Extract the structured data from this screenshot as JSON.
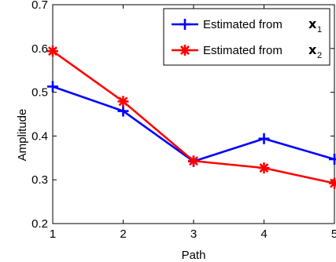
{
  "chart_data": {
    "type": "line",
    "xlabel": "Path",
    "ylabel": "Amplitude",
    "xlim": [
      1,
      5
    ],
    "ylim": [
      0.2,
      0.7
    ],
    "x": [
      1,
      2,
      3,
      4,
      5
    ],
    "x_ticks": [
      "1",
      "2",
      "3",
      "4",
      "5"
    ],
    "y_ticks": [
      "0.2",
      "0.3",
      "0.4",
      "0.5",
      "0.6",
      "0.7"
    ],
    "grid": false,
    "legend_position": "top-right",
    "series": [
      {
        "name": "Estimated from",
        "var": "x",
        "sub": "1",
        "color": "#0000ff",
        "marker": "plus",
        "values": [
          0.513,
          0.457,
          0.342,
          0.394,
          0.347
        ]
      },
      {
        "name": "Estimated from",
        "var": "x",
        "sub": "2",
        "color": "#ff0000",
        "marker": "asterisk",
        "values": [
          0.594,
          0.479,
          0.343,
          0.327,
          0.292
        ]
      }
    ]
  }
}
